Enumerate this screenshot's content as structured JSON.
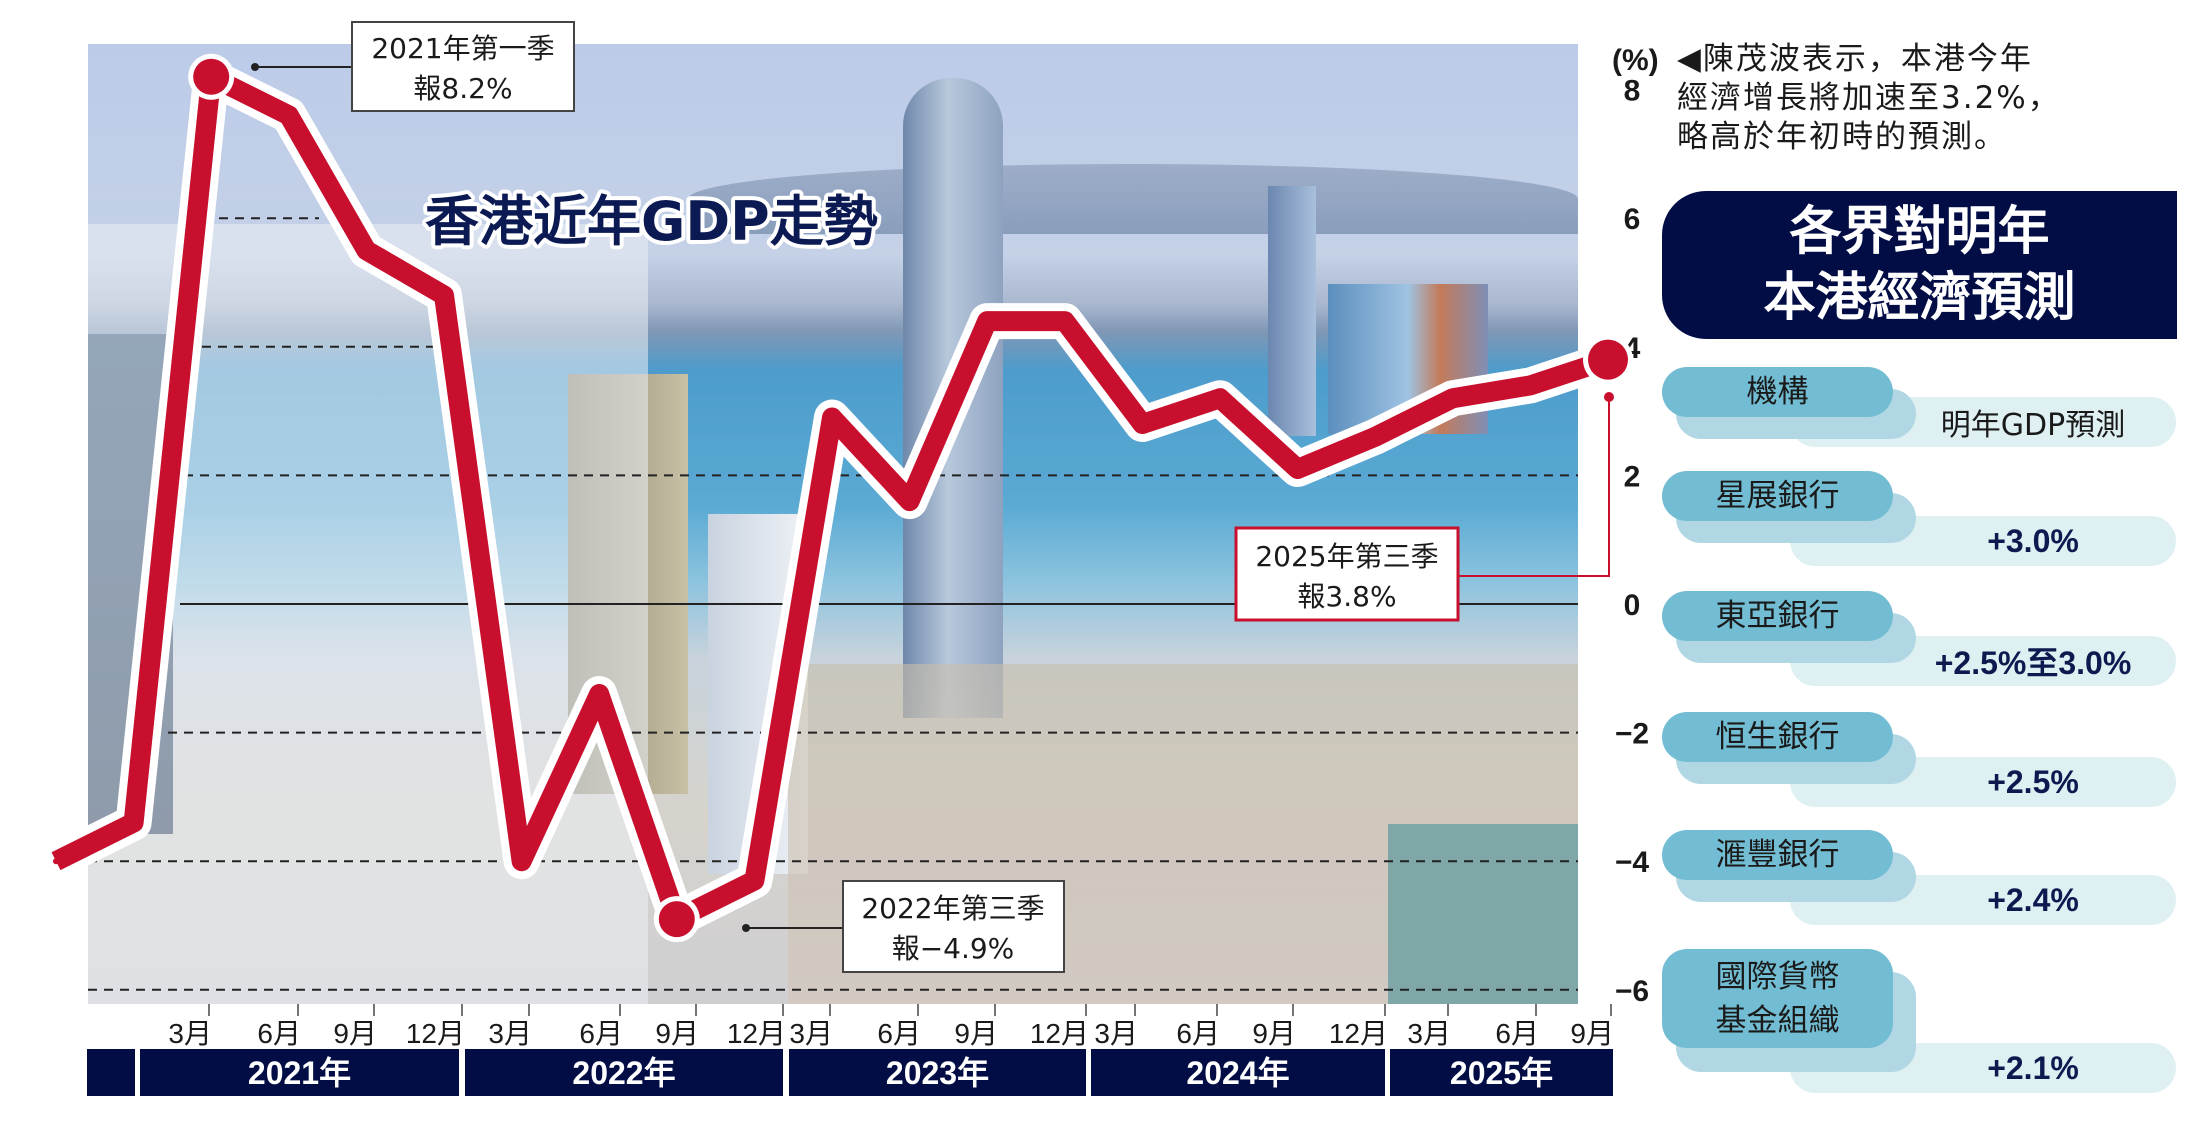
{
  "chart_data": {
    "type": "line",
    "title": "香港近年GDP走勢",
    "ylabel": "(%)",
    "ylim": [
      -6,
      8
    ],
    "y_ticks": [
      8,
      6,
      4,
      2,
      0,
      -2,
      -4,
      -6
    ],
    "y_tick_labels": [
      "8",
      "6",
      "4",
      "2",
      "0",
      "−2",
      "−4",
      "−6"
    ],
    "grid": true,
    "line_color": "#c8102e",
    "month_labels": [
      "3月",
      "6月",
      "9月",
      "12月",
      "3月",
      "6月",
      "9月",
      "12月",
      "3月",
      "6月",
      "9月",
      "12月",
      "3月",
      "6月",
      "9月",
      "12月",
      "3月",
      "6月",
      "9月"
    ],
    "year_labels": [
      "2021年",
      "2022年",
      "2023年",
      "2024年",
      "2025年"
    ],
    "series": [
      {
        "values": [
          -4.0,
          -3.4,
          8.2,
          7.6,
          5.5,
          4.8,
          -4.0,
          -1.4,
          -4.9,
          -4.3,
          2.9,
          1.6,
          4.4,
          4.4,
          2.8,
          3.2,
          2.1,
          2.6,
          3.2,
          3.4,
          3.8
        ]
      }
    ],
    "annotations": [
      {
        "line1": "2021年第一季",
        "line2": "報8.2%"
      },
      {
        "line1": "2022年第三季",
        "line2": "報−4.9%"
      },
      {
        "line1": "2025年第三季",
        "line2": "報3.8%"
      }
    ]
  },
  "note": {
    "lines": [
      "◀陳茂波表示，本港今年",
      "經濟增長將加速至3.2%，",
      "略高於年初時的預測。"
    ]
  },
  "forecast": {
    "title_lines": [
      "各界對明年",
      "本港經濟預測"
    ],
    "header": {
      "institution": "機構",
      "value": "明年GDP預測"
    },
    "accent_color": "#72bdd3",
    "navy_color": "#020d45",
    "rows": [
      {
        "institution": [
          "星展銀行"
        ],
        "value": "+3.0%"
      },
      {
        "institution": [
          "東亞銀行"
        ],
        "value": "+2.5%至3.0%"
      },
      {
        "institution": [
          "恒生銀行"
        ],
        "value": "+2.5%"
      },
      {
        "institution": [
          "滙豐銀行"
        ],
        "value": "+2.4%"
      },
      {
        "institution": [
          "國際貨幣",
          "基金組織"
        ],
        "value": "+2.1%"
      }
    ]
  }
}
